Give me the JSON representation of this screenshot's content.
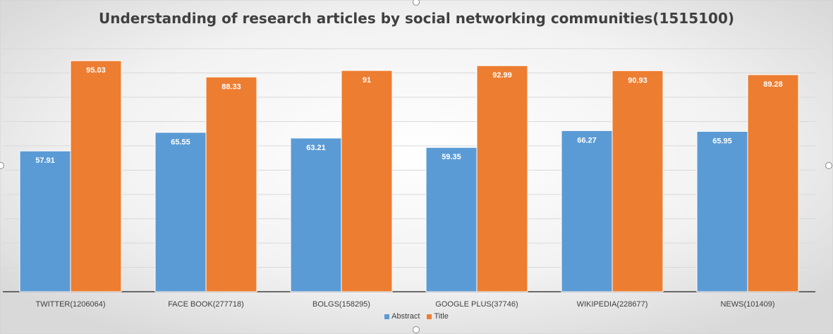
{
  "chart_data": {
    "type": "bar",
    "title": "Understanding of research articles by social networking communities(1515100)",
    "categories": [
      "TWITTER(1206064)",
      "FACE BOOK(277718)",
      "BOLGS(158295)",
      "GOOGLE PLUS(37746)",
      "WIKIPEDIA(228677)",
      "NEWS(101409)"
    ],
    "series": [
      {
        "name": "Abstract",
        "color": "#5b9bd5",
        "values": [
          57.91,
          65.55,
          63.21,
          59.35,
          66.27,
          65.95
        ],
        "labels": [
          "57.91",
          "65.55",
          "63.21",
          "59.35",
          "66.27",
          "65.95"
        ]
      },
      {
        "name": "Title",
        "color": "#ed7d31",
        "values": [
          95.03,
          88.33,
          91,
          92.99,
          90.93,
          89.28
        ],
        "labels": [
          "95.03",
          "88.33",
          "91",
          "92.99",
          "90.93",
          "89.28"
        ]
      }
    ],
    "xlabel": "",
    "ylabel": "",
    "ylim": [
      0,
      100
    ],
    "grid": true,
    "legend_position": "bottom"
  }
}
